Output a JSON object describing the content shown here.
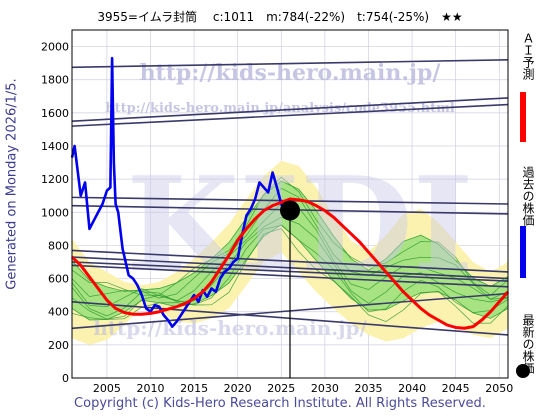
{
  "header": {
    "title": "3955=イムラ封筒　 c:1011　m:784(-22%)　t:754(-25%)　★★"
  },
  "generated": "Generated on Monday 2026/1/5.",
  "copyright": "Copyright (c) Kids-Hero Research Institute. All Rights Reserved.",
  "watermark": {
    "line1": "http://kids-hero.main.jp/",
    "line2": "http://kids-hero.main.jp/analysis/code3955.html",
    "big": "KIDI"
  },
  "legend": [
    {
      "label": "ＡＩ予測",
      "color": "#ff0000"
    },
    {
      "label": "過去の株価",
      "color": "#0000ee"
    },
    {
      "label": "最新の株価",
      "color": "#000000"
    }
  ],
  "colors": {
    "band_green": "#99e17a",
    "band_yellow": "#fbf2b0",
    "trend": "#3a3a6a"
  },
  "chart_data": {
    "type": "line",
    "xlim": [
      2001,
      2051
    ],
    "ylim": [
      0,
      2100
    ],
    "xticks": [
      2005,
      2010,
      2015,
      2020,
      2025,
      2030,
      2035,
      2040,
      2045,
      2050
    ],
    "yticks": [
      0,
      200,
      400,
      600,
      800,
      1000,
      1200,
      1400,
      1600,
      1800,
      2000
    ],
    "grid": true,
    "series": [
      {
        "name": "過去の株価",
        "x": [
          2001.0,
          2001.3,
          2002.0,
          2002.5,
          2003.0,
          2003.5,
          2004.0,
          2004.5,
          2005.0,
          2005.4,
          2005.6,
          2005.8,
          2006.0,
          2006.3,
          2006.8,
          2007.5,
          2008.0,
          2008.5,
          2009.0,
          2009.5,
          2010.0,
          2010.5,
          2011.0,
          2011.5,
          2012.0,
          2012.5,
          2013.0,
          2013.5,
          2014.0,
          2014.5,
          2015.0,
          2015.5,
          2016.0,
          2016.5,
          2017.0,
          2017.5,
          2018.0,
          2018.5,
          2019.0,
          2019.5,
          2020.0,
          2020.5,
          2021.0,
          2021.5,
          2022.0,
          2022.5,
          2023.0,
          2023.5,
          2024.0,
          2024.5,
          2025.0,
          2025.5
        ],
        "y": [
          1330,
          1400,
          1100,
          1180,
          900,
          950,
          1000,
          1050,
          1130,
          1150,
          1930,
          1300,
          1050,
          1000,
          780,
          620,
          600,
          560,
          500,
          420,
          400,
          440,
          430,
          380,
          350,
          310,
          340,
          380,
          420,
          460,
          500,
          460,
          530,
          490,
          540,
          520,
          600,
          640,
          660,
          700,
          720,
          860,
          980,
          1020,
          1080,
          1180,
          1150,
          1120,
          1240,
          1150,
          1050,
          980
        ]
      },
      {
        "name": "ＡＩ予測",
        "x": [
          2001,
          2002,
          2003,
          2004,
          2005,
          2006,
          2007,
          2008,
          2009,
          2010,
          2011,
          2012,
          2013,
          2014,
          2015,
          2016,
          2017,
          2018,
          2019,
          2020,
          2021,
          2022,
          2023,
          2024,
          2025,
          2026,
          2027,
          2028,
          2029,
          2030,
          2031,
          2032,
          2033,
          2034,
          2035,
          2036,
          2037,
          2038,
          2039,
          2040,
          2041,
          2042,
          2043,
          2044,
          2045,
          2046,
          2047,
          2048,
          2049,
          2050,
          2051
        ],
        "y": [
          730,
          680,
          610,
          540,
          470,
          420,
          395,
          385,
          385,
          390,
          400,
          415,
          430,
          450,
          480,
          520,
          580,
          660,
          740,
          830,
          900,
          960,
          1010,
          1040,
          1060,
          1080,
          1075,
          1065,
          1040,
          1010,
          970,
          920,
          870,
          820,
          760,
          700,
          640,
          580,
          520,
          470,
          420,
          380,
          350,
          320,
          305,
          300,
          310,
          350,
          400,
          460,
          520
        ]
      }
    ],
    "latest": {
      "x": 2026.0,
      "y": 1011
    },
    "trend_lines": [
      {
        "x": [
          2001,
          2051
        ],
        "y": [
          1875,
          1920
        ]
      },
      {
        "x": [
          2001,
          2051
        ],
        "y": [
          1520,
          1650
        ]
      },
      {
        "x": [
          2001,
          2051
        ],
        "y": [
          1550,
          1690
        ]
      },
      {
        "x": [
          2001,
          2051
        ],
        "y": [
          1090,
          1050
        ]
      },
      {
        "x": [
          2001,
          2051
        ],
        "y": [
          1040,
          990
        ]
      },
      {
        "x": [
          2001,
          2051
        ],
        "y": [
          770,
          640
        ]
      },
      {
        "x": [
          2001,
          2051
        ],
        "y": [
          730,
          600
        ]
      },
      {
        "x": [
          2001,
          2051
        ],
        "y": [
          700,
          585
        ]
      },
      {
        "x": [
          2001,
          2051
        ],
        "y": [
          680,
          550
        ]
      },
      {
        "x": [
          2001,
          2051
        ],
        "y": [
          460,
          260
        ]
      },
      {
        "x": [
          2001,
          2051
        ],
        "y": [
          300,
          510
        ]
      }
    ],
    "band": {
      "x": [
        2001,
        2003,
        2005,
        2007,
        2009,
        2011,
        2013,
        2015,
        2017,
        2019,
        2021,
        2023,
        2025,
        2027,
        2029,
        2031,
        2033,
        2035,
        2037,
        2039,
        2041,
        2043,
        2045,
        2047,
        2049,
        2051
      ],
      "upper": [
        840,
        700,
        640,
        580,
        560,
        580,
        640,
        720,
        820,
        930,
        1080,
        1220,
        1310,
        1280,
        1150,
        980,
        830,
        760,
        860,
        990,
        1020,
        940,
        820,
        700,
        640,
        700
      ],
      "lower": [
        240,
        200,
        230,
        320,
        430,
        400,
        340,
        330,
        360,
        420,
        560,
        700,
        760,
        640,
        520,
        420,
        330,
        260,
        220,
        240,
        300,
        340,
        320,
        260,
        240,
        300
      ]
    }
  }
}
